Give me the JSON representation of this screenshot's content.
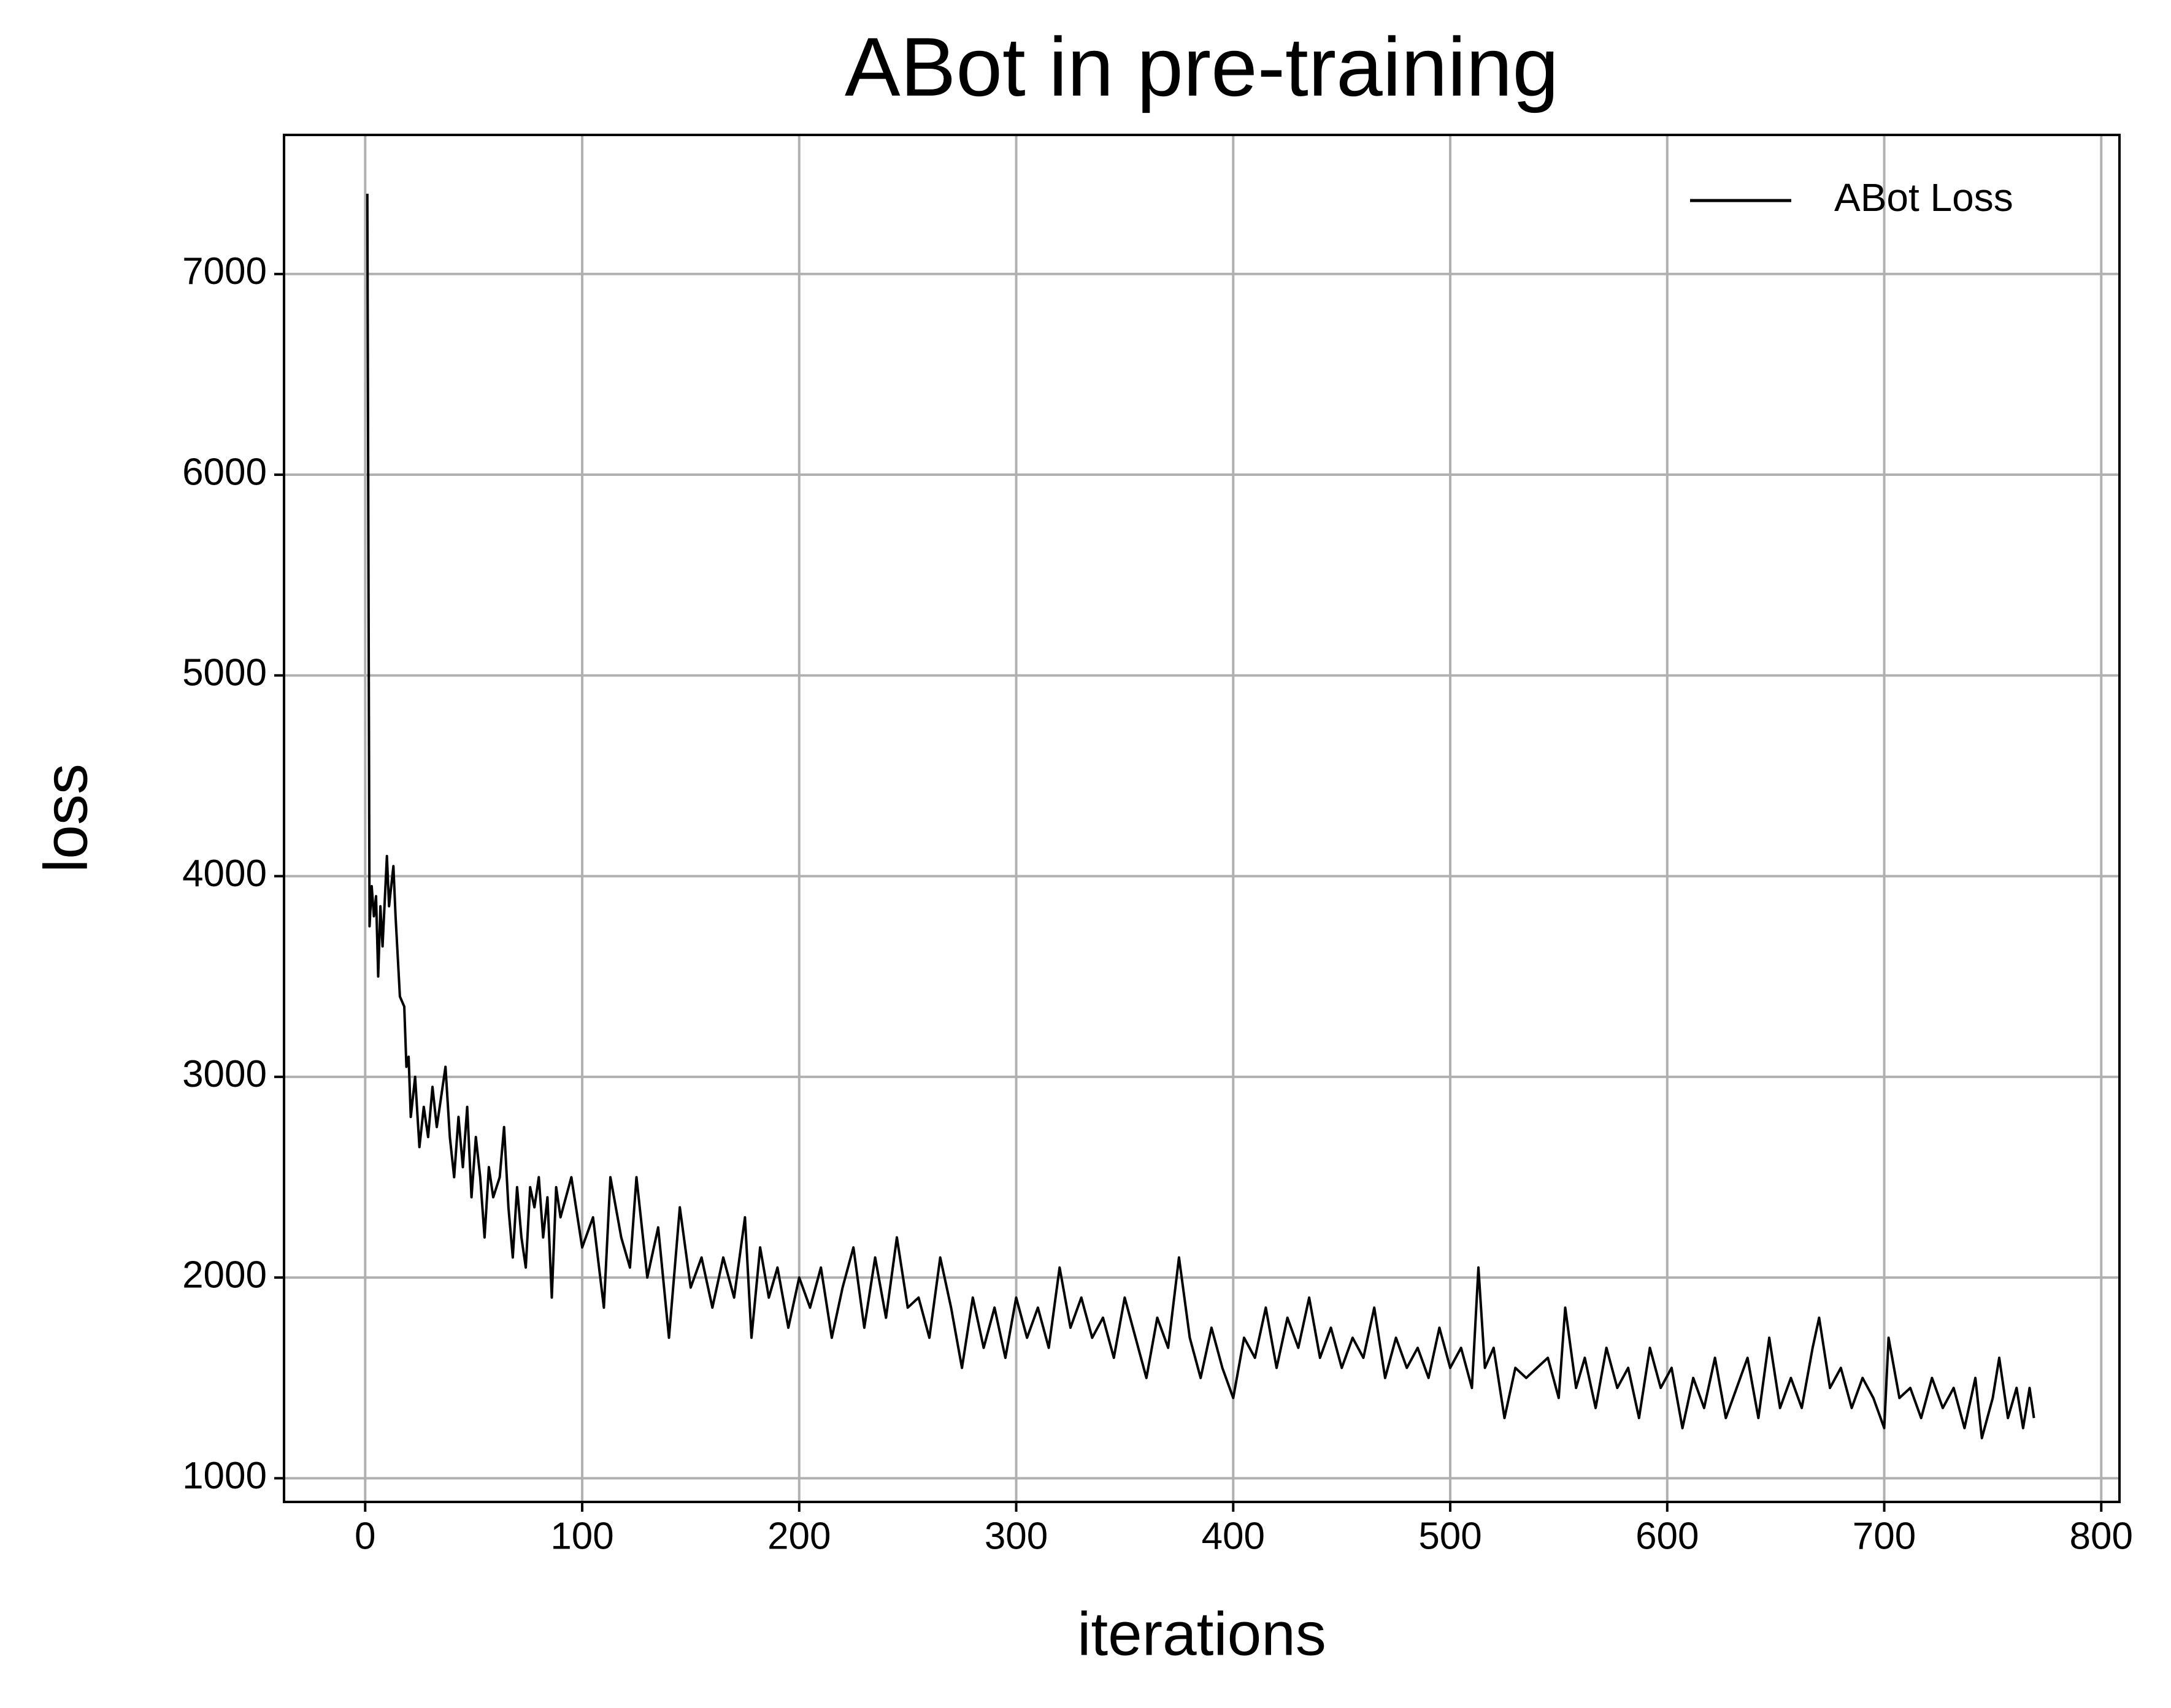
{
  "chart_data": {
    "type": "line",
    "title": "ABot in pre-training",
    "x_label": "iterations",
    "y_label": "loss",
    "x": [
      1,
      2,
      3,
      4,
      5,
      6,
      7,
      8,
      10,
      11,
      13,
      14,
      16,
      18,
      19,
      20,
      21,
      23,
      25,
      27,
      29,
      31,
      33,
      35,
      37,
      39,
      41,
      43,
      45,
      47,
      49,
      51,
      53,
      55,
      57,
      59,
      62,
      64,
      66,
      68,
      70,
      72,
      74,
      76,
      78,
      80,
      82,
      84,
      86,
      88,
      90,
      95,
      100,
      105,
      110,
      113,
      118,
      122,
      125,
      130,
      135,
      140,
      145,
      150,
      155,
      160,
      165,
      170,
      175,
      178,
      182,
      186,
      190,
      195,
      200,
      205,
      210,
      215,
      220,
      225,
      230,
      235,
      240,
      245,
      250,
      255,
      260,
      265,
      270,
      275,
      280,
      285,
      290,
      295,
      300,
      305,
      310,
      315,
      320,
      325,
      330,
      335,
      340,
      345,
      350,
      355,
      360,
      365,
      370,
      375,
      380,
      385,
      390,
      395,
      400,
      405,
      410,
      415,
      420,
      425,
      430,
      435,
      440,
      445,
      450,
      455,
      460,
      465,
      470,
      475,
      480,
      485,
      490,
      495,
      500,
      505,
      510,
      513,
      516,
      520,
      525,
      530,
      535,
      540,
      545,
      550,
      553,
      558,
      562,
      567,
      572,
      577,
      582,
      587,
      592,
      597,
      602,
      607,
      612,
      617,
      622,
      627,
      632,
      637,
      642,
      647,
      652,
      657,
      662,
      667,
      670,
      675,
      680,
      685,
      690,
      695,
      700,
      702,
      707,
      712,
      717,
      722,
      727,
      732,
      737,
      742,
      745,
      750,
      753,
      757,
      761,
      764,
      767,
      769
    ],
    "series": [
      {
        "name": "ABot Loss",
        "color": "#000000",
        "values": [
          7400,
          3750,
          3950,
          3800,
          3900,
          3500,
          3850,
          3650,
          4100,
          3850,
          4050,
          3800,
          3400,
          3350,
          3050,
          3100,
          2800,
          3000,
          2650,
          2850,
          2700,
          2950,
          2750,
          2900,
          3050,
          2700,
          2500,
          2800,
          2550,
          2850,
          2400,
          2700,
          2500,
          2200,
          2550,
          2400,
          2500,
          2750,
          2350,
          2100,
          2450,
          2200,
          2050,
          2450,
          2350,
          2500,
          2200,
          2400,
          1900,
          2450,
          2300,
          2500,
          2150,
          2300,
          1850,
          2500,
          2200,
          2050,
          2500,
          2000,
          2250,
          1700,
          2350,
          1950,
          2100,
          1850,
          2100,
          1900,
          2300,
          1700,
          2150,
          1900,
          2050,
          1750,
          2000,
          1850,
          2050,
          1700,
          1950,
          2150,
          1750,
          2100,
          1800,
          2200,
          1850,
          1900,
          1700,
          2100,
          1850,
          1550,
          1900,
          1650,
          1850,
          1600,
          1900,
          1700,
          1850,
          1650,
          2050,
          1750,
          1900,
          1700,
          1800,
          1600,
          1900,
          1700,
          1500,
          1800,
          1650,
          2100,
          1700,
          1500,
          1750,
          1550,
          1400,
          1700,
          1600,
          1850,
          1550,
          1800,
          1650,
          1900,
          1600,
          1750,
          1550,
          1700,
          1600,
          1850,
          1500,
          1700,
          1550,
          1650,
          1500,
          1750,
          1550,
          1650,
          1450,
          2050,
          1550,
          1650,
          1300,
          1550,
          1500,
          1550,
          1600,
          1400,
          1850,
          1450,
          1600,
          1350,
          1650,
          1450,
          1550,
          1300,
          1650,
          1450,
          1550,
          1250,
          1500,
          1350,
          1600,
          1300,
          1450,
          1600,
          1300,
          1700,
          1350,
          1500,
          1350,
          1650,
          1800,
          1450,
          1550,
          1350,
          1500,
          1400,
          1250,
          1700,
          1400,
          1450,
          1300,
          1500,
          1350,
          1450,
          1250,
          1500,
          1200,
          1400,
          1600,
          1300,
          1450,
          1250,
          1450,
          1300
        ]
      }
    ],
    "xlim": [
      -37.4,
      808.4
    ],
    "ylim": [
      882,
      7693
    ],
    "xticks": [
      0,
      100,
      200,
      300,
      400,
      500,
      600,
      700,
      800
    ],
    "yticks": [
      1000,
      2000,
      3000,
      4000,
      5000,
      6000,
      7000
    ],
    "grid": true,
    "legend": "upper right"
  }
}
